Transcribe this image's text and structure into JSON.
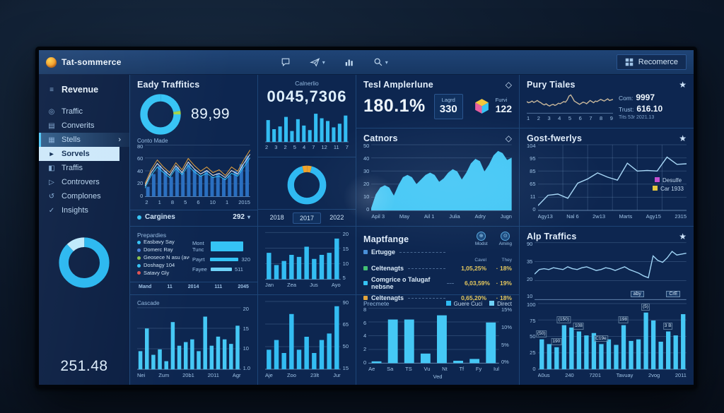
{
  "theme": {
    "accent_cyan": "#33bdf2",
    "accent_light": "#bfe9fb",
    "accent_orange": "#f0a32a",
    "accent_green": "#8bc34a",
    "accent_red": "#e05252",
    "accent_magenta": "#c44fd0",
    "accent_yellow": "#e2c63f",
    "bar_blue": "#2a6fc0"
  },
  "app": {
    "logo_label": "Tat-sommerce",
    "right_button": "Recomerce"
  },
  "sidebar": {
    "items": [
      {
        "icon": "≡",
        "label": "Revenue"
      },
      {
        "icon": "◎",
        "label": "Traffic"
      },
      {
        "icon": "▤",
        "label": "Converits"
      },
      {
        "icon": "▦",
        "label": "Stells",
        "chevron": "›"
      },
      {
        "icon": "▸",
        "label": "Sorvels"
      },
      {
        "icon": "◧",
        "label": "Traffis"
      },
      {
        "icon": "▷",
        "label": "Controvers"
      },
      {
        "icon": "↺",
        "label": "Complones"
      },
      {
        "icon": "✓",
        "label": "Insights"
      }
    ],
    "total": "251.48"
  },
  "cards": {
    "eady": {
      "title": "Eady Traffitics",
      "value": "89,99",
      "chart_label": "Conto Made",
      "footer_label": "Cargines",
      "footer_value": "292",
      "footer_caret": "▾",
      "dot_color": "#35c3f5"
    },
    "calnerlio": {
      "label": "Calnerlio",
      "value": "0045,7306",
      "years": [
        "2018",
        "2017",
        "2022"
      ]
    },
    "tesl": {
      "title": "Tesl Amplerlune",
      "icon": "◇",
      "value": "180.1%",
      "box_label": "Lagrd",
      "box_value": "330",
      "cube_label": "Furvi",
      "cube_value": "122"
    },
    "pury": {
      "title": "Pury Tiales",
      "icon": "★",
      "stats": [
        {
          "k": "Com:",
          "v": "9997"
        },
        {
          "k": "Trust:",
          "v": "616.10"
        }
      ],
      "note": "Tits   53r 2021.13"
    },
    "catnors": {
      "title": "Catnors",
      "icon": "◇"
    },
    "gost": {
      "title": "Gost-fwerlys",
      "icon": "★",
      "legend": [
        {
          "color": "#c44fd0",
          "label": "Desulfe"
        },
        {
          "color": "#e2c63f",
          "label": "Car 1933"
        }
      ]
    },
    "properties": {
      "title": "Prepardies",
      "legend": [
        {
          "color": "#35c3f5",
          "label": "Easbavy Say"
        },
        {
          "color": "#4a7fd9",
          "label": "Domerc Ray"
        },
        {
          "color": "#8bc34a",
          "label": "Geosece N asu (avG)"
        },
        {
          "color": "#35c3f5",
          "label": "Doshagy 104"
        },
        {
          "color": "#e05252",
          "label": "Satavy Gly"
        }
      ],
      "rows": [
        {
          "label": "Mont",
          "label2": "Tunc",
          "value": ""
        },
        {
          "label": "Payrt",
          "value": "320"
        },
        {
          "label": "Fayee",
          "value": "511"
        }
      ],
      "footer": [
        "Mand",
        "11",
        "2014",
        "111",
        "2045"
      ]
    },
    "maptfange": {
      "title": "Maptfange",
      "col_icons": [
        {
          "label": "Modst",
          "glyph": "⊕"
        },
        {
          "label": "Aming",
          "glyph": "⊙"
        }
      ],
      "col_sub": [
        "Cavel",
        "They"
      ],
      "rows": [
        {
          "color": "#4a90d9",
          "label": "Ertugge",
          "v1": "",
          "v2": ""
        },
        {
          "color": "#43c174",
          "label": "Celtenagts",
          "v1": "1,05,25%",
          "v2": "· 18%"
        },
        {
          "color": "#35c3f5",
          "label": "Comgrice o Talugaf nebsne",
          "v1": "6,03,59%",
          "v2": "· 19%"
        },
        {
          "color": "#e2a43c",
          "label": "Celtenagts",
          "v1": "0,65,20%",
          "v2": "· 18%"
        }
      ]
    },
    "precmete": {
      "title": "Precmete",
      "legend": [
        {
          "color": "#2fb9f2",
          "label": "Guere Cuci"
        },
        {
          "color": "#6fd2f8",
          "label": "Direct"
        }
      ],
      "axis_caption": "Ved"
    },
    "cascade": {
      "title": "Cascade"
    },
    "alp": {
      "title": "Alp Traffics",
      "icon": "★"
    }
  },
  "chart_data": [
    {
      "id": "sidebar-donut",
      "type": "donut",
      "thickness": 7.5,
      "segments": [
        {
          "value": 88,
          "color": "#29b7f0"
        },
        {
          "value": 12,
          "color": "#bfe9fb"
        }
      ]
    },
    {
      "id": "eady-donut",
      "type": "donut",
      "thickness": 7,
      "segments": [
        {
          "value": 22,
          "color": "#35c3f5"
        },
        {
          "value": 3,
          "color": "#a4d44a"
        },
        {
          "value": 75,
          "color": "#35c3f5"
        }
      ]
    },
    {
      "id": "mid-donut",
      "type": "donut",
      "thickness": 6.5,
      "segments": [
        {
          "value": 4,
          "color": "#f0a32a"
        },
        {
          "value": 92,
          "color": "#2fb9f2"
        },
        {
          "value": 4,
          "color": "#f0a32a"
        }
      ]
    },
    {
      "id": "eady-combo",
      "type": "combo",
      "max": 70,
      "grid": true,
      "color": "#2a6fc0",
      "values": [
        14,
        32,
        44,
        36,
        28,
        42,
        34,
        46,
        38,
        30,
        36,
        28,
        33,
        26,
        30,
        36,
        46,
        58
      ],
      "lines": [
        {
          "color": "#e8a33d",
          "w": 1,
          "values": [
            18,
            38,
            52,
            42,
            34,
            48,
            38,
            54,
            44,
            36,
            42,
            34,
            38,
            30,
            42,
            36,
            52,
            66
          ]
        },
        {
          "color": "#35c3f5",
          "w": 1,
          "values": [
            12,
            30,
            42,
            34,
            27,
            40,
            31,
            44,
            35,
            29,
            33,
            27,
            29,
            24,
            33,
            29,
            42,
            55
          ]
        },
        {
          "color": "#e9eef5",
          "w": 1,
          "values": [
            15,
            34,
            47,
            38,
            30,
            44,
            34,
            49,
            39,
            32,
            37,
            30,
            33,
            27,
            37,
            32,
            47,
            60
          ]
        }
      ],
      "yticks": [
        "80",
        "60",
        "40",
        "20",
        "0"
      ],
      "xticks": [
        "2",
        "1",
        "8",
        "5",
        "6",
        "10",
        "1",
        "2015"
      ]
    },
    {
      "id": "calnerlio-bars",
      "type": "bars",
      "max": 70,
      "color": "#33bdf2",
      "values": [
        48,
        28,
        34,
        55,
        24,
        50,
        36,
        26,
        62,
        52,
        46,
        32,
        40,
        58
      ],
      "xticks": [
        "2",
        "3",
        "2",
        "5",
        "4",
        "7",
        "12",
        "11",
        "7"
      ]
    },
    {
      "id": "colb-top-bars",
      "type": "bars",
      "max": 22,
      "grid": true,
      "color": "#33bdf2",
      "values": [
        13,
        7,
        9,
        12,
        11,
        16,
        10,
        12,
        13,
        20
      ],
      "yticks_right": [
        "20",
        "15",
        "10",
        "5"
      ],
      "grid_n": 4,
      "xticks": [
        "Jan",
        "Zea",
        "Jus",
        "Ayo"
      ]
    },
    {
      "id": "colb-bottom-bars",
      "type": "bars",
      "max": 100,
      "grid": true,
      "color": "#33bdf2",
      "values": [
        30,
        45,
        25,
        85,
        30,
        50,
        25,
        45,
        55,
        97
      ],
      "yticks_right": [
        "90",
        "65",
        "50",
        "15"
      ],
      "grid_n": 4,
      "xticks": [
        "Aje",
        "Zoo",
        "23lt",
        "Jur"
      ]
    },
    {
      "id": "catnors-area",
      "type": "area",
      "max": 55,
      "grid": true,
      "color": "#45c8f5",
      "values": [
        2,
        14,
        20,
        22,
        20,
        13,
        22,
        29,
        31,
        29,
        23,
        27,
        31,
        33,
        31,
        25,
        28,
        33,
        36,
        34,
        27,
        33,
        41,
        45,
        43,
        34,
        40,
        48,
        52,
        50,
        44,
        46
      ],
      "yticks": [
        "50",
        "40",
        "30",
        "20",
        "10",
        "0"
      ],
      "xticks": [
        "Apil 3",
        "May",
        "Ail 1",
        "Julia",
        "Adry",
        "Jugn"
      ]
    },
    {
      "id": "pury-spark",
      "type": "line",
      "max": 80,
      "color": "#c8b79b",
      "values": [
        42,
        38,
        40,
        44,
        39,
        42,
        46,
        41,
        38,
        33,
        30,
        34,
        29,
        26,
        30,
        32,
        28,
        31,
        36,
        34,
        38,
        42,
        40,
        48,
        62,
        66,
        56,
        44,
        40,
        36,
        32,
        36,
        40,
        38,
        34,
        40,
        46,
        42,
        38,
        44,
        42,
        46,
        50,
        47,
        44,
        48,
        52,
        46,
        48,
        50
      ],
      "xticks": [
        "1",
        "2",
        "3",
        "4",
        "5",
        "6",
        "7",
        "8",
        "9"
      ]
    },
    {
      "id": "gost-line",
      "type": "line",
      "max": 104,
      "grid": true,
      "vgrid": 6,
      "color": "#a8d8f7",
      "values": [
        8,
        25,
        27,
        20,
        45,
        52,
        62,
        55,
        50,
        78,
        65,
        66,
        65,
        88,
        76,
        77
      ],
      "yticks": [
        "104",
        "95",
        "85",
        "65",
        "11",
        "0"
      ],
      "xticks": [
        "Agy13",
        "Nal 6",
        "2w13",
        "Marts",
        "Agy15",
        "2315"
      ]
    },
    {
      "id": "cascade-bars",
      "type": "bars",
      "max": 65,
      "grid": true,
      "color": "#45c8f5",
      "values": [
        20,
        45,
        16,
        22,
        9,
        52,
        26,
        30,
        33,
        20,
        58,
        26,
        36,
        33,
        28,
        48
      ],
      "yticks_right": [
        "20",
        "15",
        "10",
        "1.0"
      ],
      "grid_n": 4,
      "xticks": [
        "Nei",
        "Zum",
        "20b1",
        "2011",
        "Agr"
      ]
    },
    {
      "id": "precmete-bars",
      "type": "bars",
      "max": 8.8,
      "grid": true,
      "color": "#45c8f5",
      "values": [
        0.3,
        7.3,
        7.3,
        1.6,
        8,
        0.4,
        0.7,
        6.8
      ],
      "yticks": [
        "8",
        "6",
        "4",
        "2",
        "0"
      ],
      "yticks_right": [
        "15%",
        "10%",
        "5%",
        "0%"
      ],
      "xticks": [
        "Ae",
        "Sa",
        "TS",
        "Vu",
        "Nt",
        "Tf",
        "Fy",
        "Iul"
      ]
    },
    {
      "id": "alp-line",
      "type": "line",
      "max": 60,
      "grid": true,
      "color": "#9fd4f5",
      "values": [
        28,
        33,
        34,
        33,
        35,
        34,
        33,
        36,
        34,
        33,
        35,
        36,
        34,
        32,
        33,
        35,
        34,
        32,
        34,
        36,
        33,
        31,
        29,
        26,
        24,
        48,
        43,
        41,
        46,
        53,
        49,
        50,
        51
      ],
      "yticks": [
        "90",
        "35",
        "20",
        "10"
      ],
      "chips": [
        "CrE",
        "aby"
      ]
    },
    {
      "id": "alp-bars",
      "type": "bars",
      "max": 80,
      "grid": true,
      "color": "#45c8f5",
      "values": [
        38,
        32,
        28,
        56,
        53,
        48,
        43,
        46,
        32,
        38,
        31,
        56,
        36,
        38,
        72,
        62,
        35,
        48,
        43,
        70
      ],
      "yticks": [
        "100",
        "75",
        "50",
        "25",
        "0"
      ],
      "xticks": [
        "A0us",
        "240",
        "7201",
        "Tavuay",
        "2vog",
        "2011"
      ],
      "bar_labels": {
        "0": "(50)",
        "2": "190",
        "3": "(150)",
        "5": "108",
        "8": "C19e",
        "11": "198",
        "14": "(5)",
        "17": "3 B"
      }
    }
  ]
}
